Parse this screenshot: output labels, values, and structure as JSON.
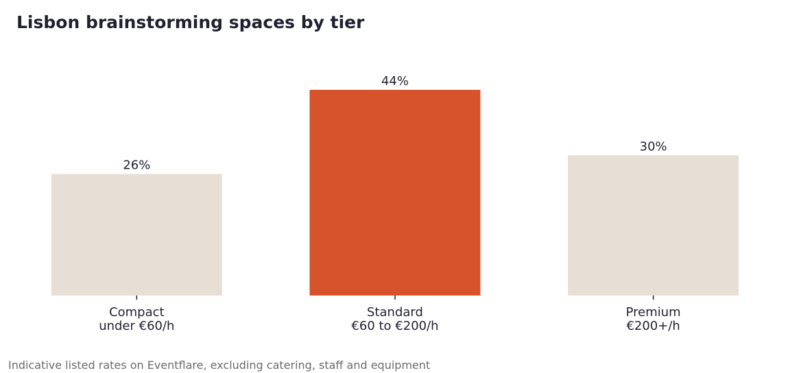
{
  "chart_data": {
    "type": "bar",
    "title": "Lisbon brainstorming spaces by tier",
    "categories": [
      [
        "Compact",
        "under €60/h"
      ],
      [
        "Standard",
        "€60 to €200/h"
      ],
      [
        "Premium",
        "€200+/h"
      ]
    ],
    "values": [
      26,
      44,
      30
    ],
    "value_labels": [
      "26%",
      "44%",
      "30%"
    ],
    "unit": "%",
    "ylim": [
      0,
      44
    ],
    "highlight_index": 1,
    "colors": {
      "bar": "#e7ded5",
      "highlight": "#d6532c",
      "text": "#1f2030",
      "tick": "#1f2030"
    },
    "xlabel": "",
    "ylabel": "",
    "grid": false,
    "legend": "none"
  },
  "footnote": "Indicative listed rates on Eventflare, excluding catering, staff and equipment"
}
